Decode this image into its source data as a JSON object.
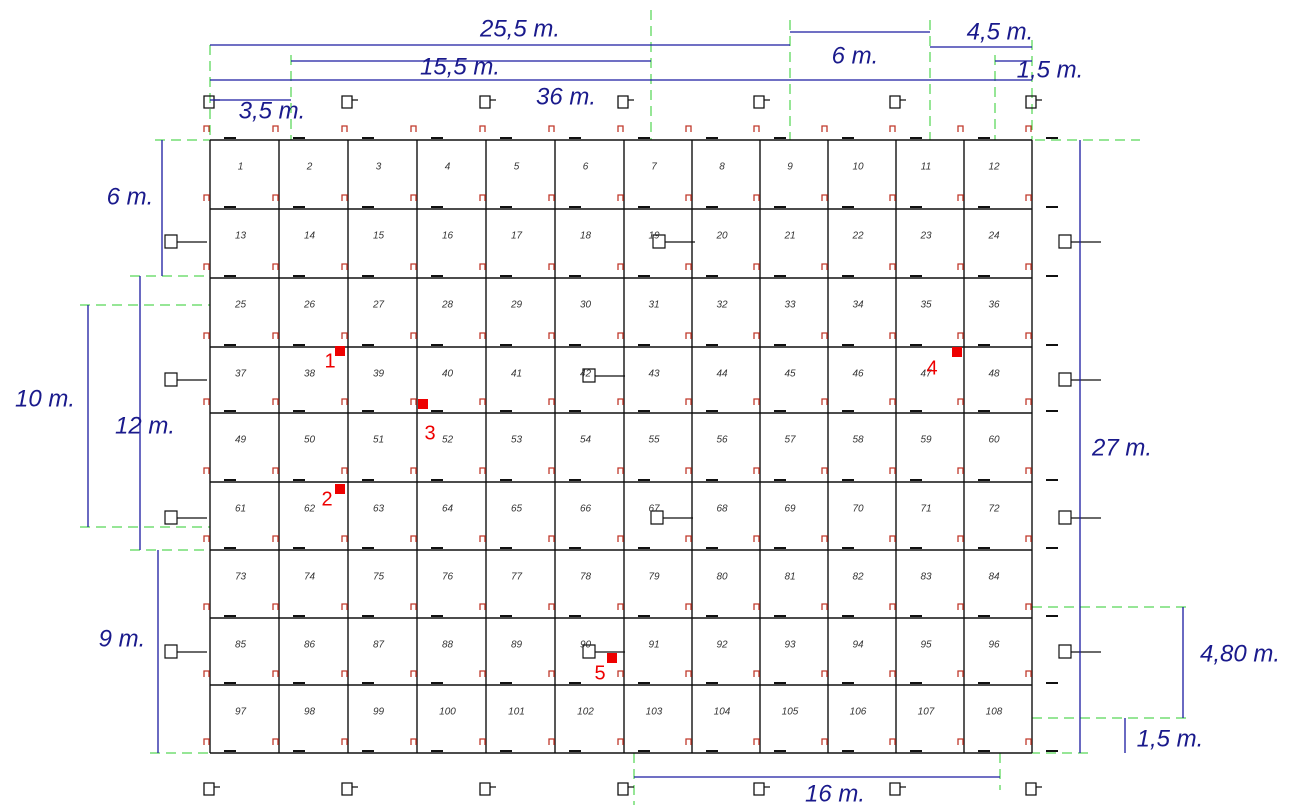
{
  "cells": [
    "1",
    "2",
    "3",
    "4",
    "5",
    "6",
    "7",
    "8",
    "9",
    "10",
    "11",
    "12",
    "13",
    "14",
    "15",
    "16",
    "17",
    "18",
    "19",
    "20",
    "21",
    "22",
    "23",
    "24",
    "25",
    "26",
    "27",
    "28",
    "29",
    "30",
    "31",
    "32",
    "33",
    "34",
    "35",
    "36",
    "37",
    "38",
    "39",
    "40",
    "41",
    "42",
    "43",
    "44",
    "45",
    "46",
    "47",
    "48",
    "49",
    "50",
    "51",
    "52",
    "53",
    "54",
    "55",
    "56",
    "57",
    "58",
    "59",
    "60",
    "61",
    "62",
    "63",
    "64",
    "65",
    "66",
    "67",
    "68",
    "69",
    "70",
    "71",
    "72",
    "73",
    "74",
    "75",
    "76",
    "77",
    "78",
    "79",
    "80",
    "81",
    "82",
    "83",
    "84",
    "85",
    "86",
    "87",
    "88",
    "89",
    "90",
    "91",
    "92",
    "93",
    "94",
    "95",
    "96",
    "97",
    "98",
    "99",
    "100",
    "101",
    "102",
    "103",
    "104",
    "105",
    "106",
    "107",
    "108"
  ],
  "dimensions": [
    "25,5 m.",
    "6 m.",
    "4,5 m.",
    "15,5 m.",
    "1,5 m.",
    "36 m.",
    "3,5 m.",
    "6 m.",
    "10 m.",
    "12 m.",
    "9 m.",
    "27 m.",
    "4,80 m.",
    "1,5 m.",
    "16 m."
  ],
  "markers": [
    "1",
    "2",
    "3",
    "4",
    "5"
  ]
}
